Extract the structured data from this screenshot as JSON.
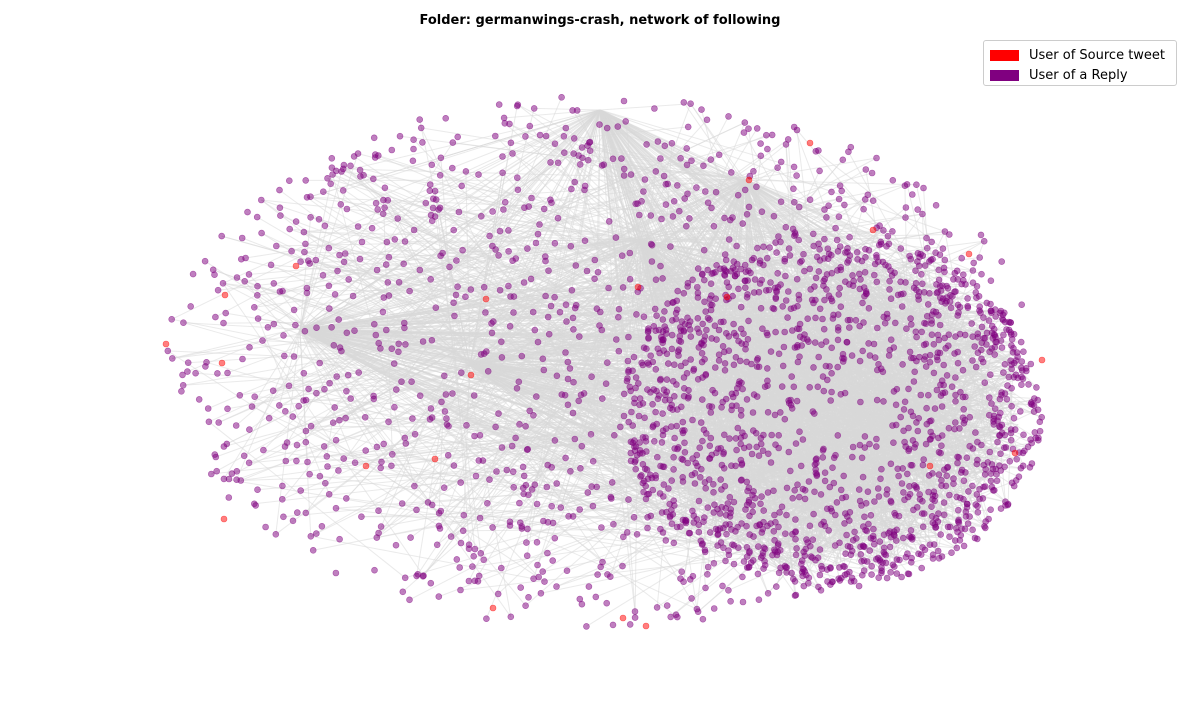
{
  "title": "Folder: germanwings-crash, network of following",
  "legend": {
    "items": [
      {
        "label": "User of Source tweet",
        "color": "#ff0000"
      },
      {
        "label": "User of a Reply",
        "color": "#800080"
      }
    ]
  },
  "colors": {
    "source_node": "#ff0000",
    "reply_node": "#800080",
    "edge": "#d9d9d9",
    "background": "#ffffff"
  },
  "chart_data": {
    "type": "network",
    "title": "Folder: germanwings-crash, network of following",
    "node_types": [
      {
        "name": "User of Source tweet",
        "color": "#ff0000"
      },
      {
        "name": "User of a Reply",
        "color": "#800080"
      }
    ],
    "edges_shown": true,
    "axes_visible": false,
    "legend_position": "top-right"
  }
}
